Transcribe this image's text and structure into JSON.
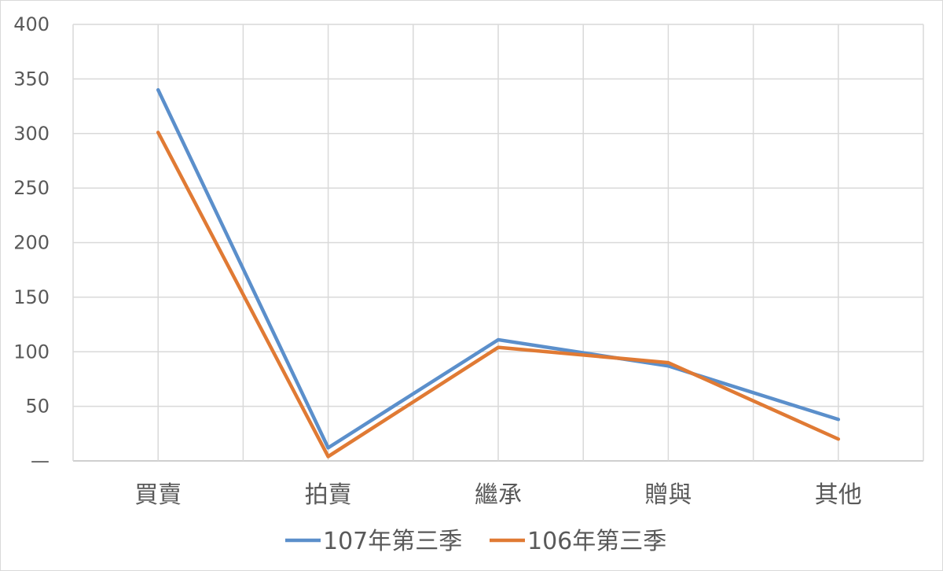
{
  "chart_data": {
    "type": "line",
    "title": "",
    "xlabel": "",
    "ylabel": "",
    "categories": [
      "買賣",
      "拍賣",
      "繼承",
      "贈與",
      "其他"
    ],
    "ylim": [
      0,
      400
    ],
    "yticks": [
      0,
      50,
      100,
      150,
      200,
      250,
      300,
      350,
      400
    ],
    "ytick_labels": [
      "—",
      "50",
      "100",
      "150",
      "200",
      "250",
      "300",
      "350",
      "400"
    ],
    "grid": true,
    "legend_position": "bottom",
    "series": [
      {
        "name": "107年第三季",
        "color": "#5b8fcb",
        "values": [
          340,
          12,
          111,
          87,
          38
        ]
      },
      {
        "name": "106年第三季",
        "color": "#e07a34",
        "values": [
          301,
          4,
          104,
          90,
          20
        ]
      }
    ]
  }
}
